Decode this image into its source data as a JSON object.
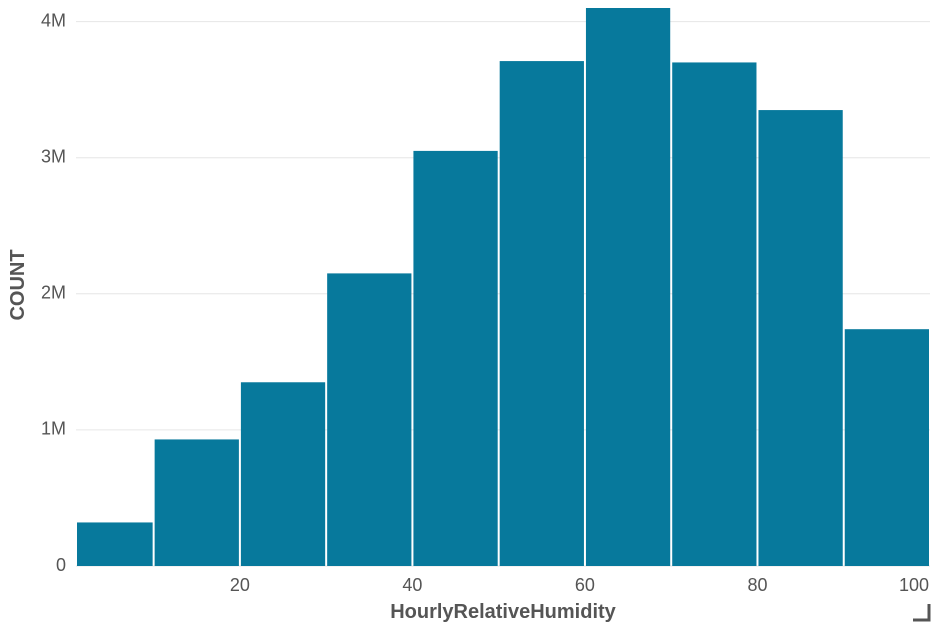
{
  "chart_data": {
    "type": "bar",
    "bins": [
      {
        "x0": 0,
        "x1": 10,
        "count": 320000
      },
      {
        "x0": 10,
        "x1": 20,
        "count": 930000
      },
      {
        "x0": 20,
        "x1": 30,
        "count": 1350000
      },
      {
        "x0": 30,
        "x1": 40,
        "count": 2150000
      },
      {
        "x0": 40,
        "x1": 50,
        "count": 3050000
      },
      {
        "x0": 50,
        "x1": 60,
        "count": 3710000
      },
      {
        "x0": 60,
        "x1": 70,
        "count": 4100000
      },
      {
        "x0": 70,
        "x1": 80,
        "count": 3700000
      },
      {
        "x0": 80,
        "x1": 90,
        "count": 3350000
      },
      {
        "x0": 90,
        "x1": 100,
        "count": 1740000
      }
    ],
    "xlabel": "HourlyRelativeHumidity",
    "ylabel": "COUNT",
    "xlim": [
      1,
      100
    ],
    "ylim": [
      0,
      4100000
    ],
    "x_ticks": [
      {
        "value": 20,
        "label": "20"
      },
      {
        "value": 40,
        "label": "40"
      },
      {
        "value": 60,
        "label": "60"
      },
      {
        "value": 80,
        "label": "80"
      },
      {
        "value": 100,
        "label": "100"
      }
    ],
    "y_ticks": [
      {
        "value": 0,
        "label": "0"
      },
      {
        "value": 1000000,
        "label": "1M"
      },
      {
        "value": 2000000,
        "label": "2M"
      },
      {
        "value": 3000000,
        "label": "3M"
      },
      {
        "value": 4000000,
        "label": "4M"
      }
    ],
    "grid": true,
    "bar_color": "#07799c"
  }
}
